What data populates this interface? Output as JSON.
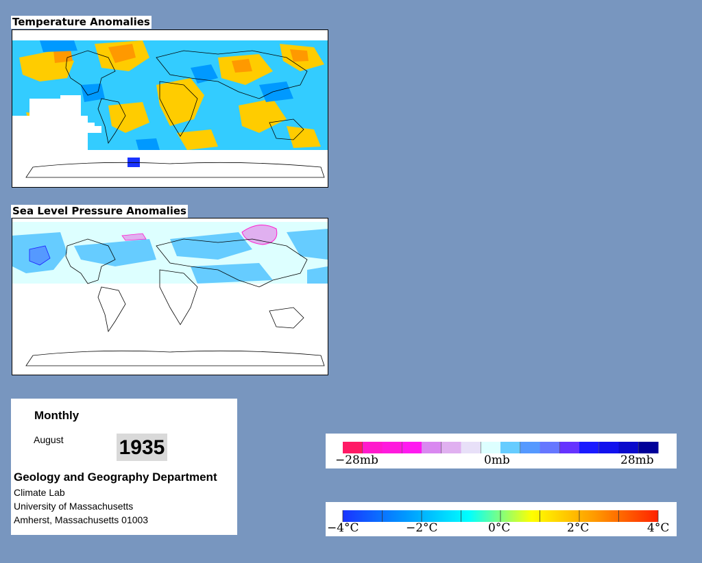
{
  "temperature_panel": {
    "title": "Temperature Anomalies"
  },
  "pressure_panel": {
    "title": "Sea Level Pressure Anomalies"
  },
  "info": {
    "frequency": "Monthly",
    "month": "August",
    "year": "1935",
    "department": "Geology and Geography Department",
    "lines": [
      "Climate Lab",
      "University of Massachusetts",
      "Amherst, Massachusetts 01003"
    ]
  },
  "pressure_legend": {
    "labels": [
      "−28mb",
      "0mb",
      "28mb"
    ],
    "colors": [
      "#ff1a66",
      "#ff1acc",
      "#ff1add",
      "#ff1af0",
      "#d988f0",
      "#e0b0f0",
      "#e8e0f8",
      "#ddffff",
      "#66ccff",
      "#5599ff",
      "#6677ff",
      "#6633ff",
      "#1a1aff",
      "#1111ee",
      "#0a0acc",
      "#000099"
    ]
  },
  "temperature_legend": {
    "labels": [
      "−4°C",
      "−2°C",
      "0°C",
      "2°C",
      "4°C"
    ],
    "colors": [
      "#1a33ff",
      "#0099ff",
      "#00ffff",
      "#ffff00",
      "#ff9900",
      "#ff2200"
    ]
  }
}
